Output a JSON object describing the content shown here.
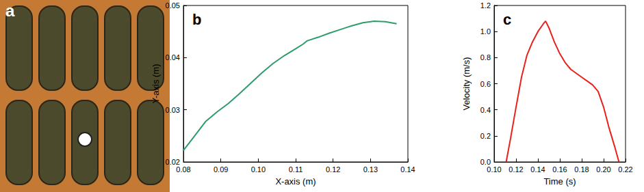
{
  "image_panel": {
    "label": "a"
  },
  "chart_data": [
    {
      "type": "line",
      "title": "b",
      "x_label": "X-axis (m)",
      "y_label": "Y-axis (m)",
      "color": "#2e9b6a",
      "x": [
        0.08,
        0.083,
        0.086,
        0.089,
        0.092,
        0.095,
        0.098,
        0.101,
        0.104,
        0.107,
        0.11,
        0.112,
        0.113,
        0.116,
        0.119,
        0.122,
        0.125,
        0.128,
        0.131,
        0.134,
        0.137
      ],
      "values": [
        0.0222,
        0.025,
        0.0278,
        0.0296,
        0.0312,
        0.0331,
        0.0351,
        0.0371,
        0.0389,
        0.0404,
        0.0417,
        0.0426,
        0.0432,
        0.0439,
        0.0447,
        0.0454,
        0.0461,
        0.0467,
        0.047,
        0.0469,
        0.0465
      ],
      "xlim": [
        0.08,
        0.14
      ],
      "xticks": [
        0.08,
        0.09,
        {
          "value": 0.1,
          "label": "0.10"
        },
        0.11,
        0.12,
        0.13,
        0.14
      ],
      "ylim": [
        0.02,
        0.05
      ],
      "yticks": [
        0.02,
        0.03,
        0.04,
        0.05
      ],
      "grid": false
    },
    {
      "type": "line",
      "title": "c",
      "x_label": "Time (s)",
      "y_label": "Velocity (m/s)",
      "color": "#e8211c",
      "x": [
        0.111,
        0.115,
        0.12,
        0.125,
        0.13,
        0.135,
        0.14,
        0.145,
        0.147,
        0.15,
        0.155,
        0.16,
        0.165,
        0.17,
        0.175,
        0.18,
        0.185,
        0.19,
        0.195,
        0.2,
        0.205,
        0.21,
        0.214
      ],
      "values": [
        0.0,
        0.18,
        0.42,
        0.65,
        0.82,
        0.92,
        1.0,
        1.06,
        1.08,
        1.03,
        0.92,
        0.83,
        0.76,
        0.71,
        0.68,
        0.65,
        0.62,
        0.59,
        0.54,
        0.42,
        0.26,
        0.12,
        0.0
      ],
      "xlim": [
        0.1,
        0.22
      ],
      "xticks": [
        {
          "value": 0.1,
          "label": "0.10"
        },
        0.12,
        0.14,
        0.16,
        0.18,
        {
          "value": 0.2,
          "label": "0.20"
        },
        0.22
      ],
      "ylim": [
        0,
        1.2
      ],
      "yticks": [
        {
          "value": 0,
          "label": "0.0"
        },
        0.2,
        0.4,
        0.6,
        0.8,
        {
          "value": 1,
          "label": "1.0"
        },
        1.2
      ],
      "grid": false
    }
  ]
}
